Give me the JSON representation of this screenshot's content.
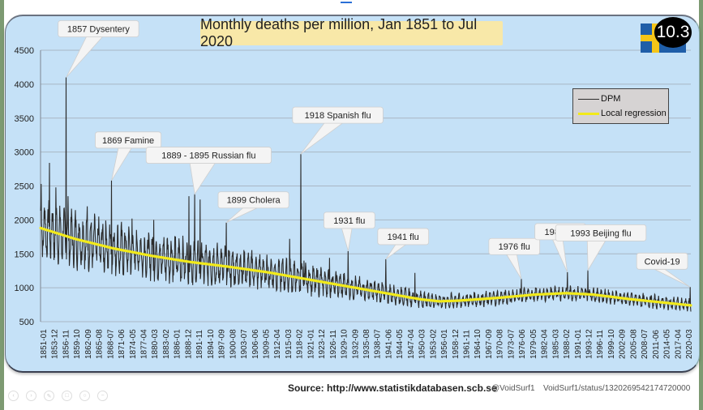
{
  "badge": {
    "label": "10.3",
    "flag": "sweden-flag-icon"
  },
  "footer": {
    "source": "Source: http://www.statistikdatabasen.scb.se",
    "handle": "@VoidSurf1",
    "status": "VoidSurf1/status/1320269542174720000"
  },
  "toolbar": {
    "icons": [
      "prev-icon",
      "next-icon",
      "edit-icon",
      "delete-icon",
      "zoom-icon",
      "minus-icon"
    ]
  },
  "colors": {
    "dpm": "#2b2b2b",
    "regression": "#f2ea1a",
    "panel": "#c5e1f7",
    "title_bg": "#f8e8a8",
    "grid": "#a9b6c4"
  },
  "chart_data": {
    "type": "line",
    "title": "Monthly deaths per million, Jan 1851 to Jul 2020",
    "xlabel": "",
    "ylabel": "",
    "ylim": [
      500,
      4500
    ],
    "yticks": [
      500,
      1000,
      1500,
      2000,
      2500,
      3000,
      3500,
      4000,
      4500
    ],
    "xlim": [
      1851.0,
      2020.5
    ],
    "grid": true,
    "legend_position": "top-right",
    "legend": [
      {
        "name": "DPM",
        "color": "#2b2b2b"
      },
      {
        "name": "Local regression",
        "color": "#f2ea1a"
      }
    ],
    "xticks": [
      "1851-01",
      "1853-12",
      "1856-11",
      "1859-10",
      "1862-09",
      "1865-08",
      "1868-07",
      "1871-06",
      "1874-05",
      "1877-04",
      "1880-03",
      "1883-02",
      "1886-01",
      "1888-12",
      "1891-11",
      "1894-10",
      "1897-09",
      "1900-08",
      "1903-07",
      "1906-06",
      "1909-05",
      "1912-04",
      "1915-03",
      "1918-02",
      "1921-01",
      "1923-12",
      "1926-11",
      "1929-10",
      "1932-09",
      "1935-08",
      "1938-07",
      "1941-06",
      "1944-05",
      "1947-04",
      "1950-03",
      "1953-02",
      "1956-01",
      "1958-12",
      "1961-11",
      "1964-10",
      "1967-09",
      "1970-08",
      "1973-07",
      "1976-06",
      "1979-05",
      "1982-04",
      "1985-03",
      "1988-02",
      "1991-01",
      "1993-12",
      "1996-11",
      "1999-10",
      "2002-09",
      "2005-08",
      "2008-07",
      "2011-06",
      "2014-05",
      "2017-04",
      "2020-03"
    ],
    "series": [
      {
        "name": "Local regression",
        "x": [
          1851,
          1860,
          1870,
          1880,
          1890,
          1900,
          1910,
          1918,
          1925,
          1935,
          1945,
          1950,
          1955,
          1960,
          1970,
          1980,
          1988,
          1995,
          2005,
          2012,
          2020.5
        ],
        "values": [
          1880,
          1720,
          1580,
          1470,
          1380,
          1310,
          1230,
          1150,
          1080,
          980,
          880,
          830,
          800,
          810,
          850,
          900,
          920,
          900,
          830,
          790,
          740
        ]
      },
      {
        "name": "DPM",
        "description": "Monthly series with strong seasonal oscillation around the regression; amplitude ±~400 in 1850s decreasing to ±~100 by 2020",
        "seasonal_amplitude": {
          "x": [
            1851,
            1900,
            1950,
            2020.5
          ],
          "values": [
            420,
            280,
            110,
            90
          ]
        },
        "peaks": [
          {
            "x": 1851.2,
            "value": 2530
          },
          {
            "x": 1853.3,
            "value": 2840
          },
          {
            "x": 1855.0,
            "value": 2480
          },
          {
            "x": 1857.7,
            "value": 4100
          },
          {
            "x": 1858.2,
            "value": 2350
          },
          {
            "x": 1863.2,
            "value": 2200
          },
          {
            "x": 1869.5,
            "value": 2580
          },
          {
            "x": 1874.8,
            "value": 2020
          },
          {
            "x": 1880.5,
            "value": 2000
          },
          {
            "x": 1889.7,
            "value": 2350
          },
          {
            "x": 1891.2,
            "value": 2380
          },
          {
            "x": 1892.6,
            "value": 2300
          },
          {
            "x": 1899.4,
            "value": 1960
          },
          {
            "x": 1915.9,
            "value": 1720
          },
          {
            "x": 1918.8,
            "value": 2970
          },
          {
            "x": 1919.7,
            "value": 1400
          },
          {
            "x": 1926.3,
            "value": 1440
          },
          {
            "x": 1931.2,
            "value": 1540
          },
          {
            "x": 1941.0,
            "value": 1420
          },
          {
            "x": 1948.6,
            "value": 1220
          },
          {
            "x": 1976.3,
            "value": 1130
          },
          {
            "x": 1988.3,
            "value": 1230
          },
          {
            "x": 1993.7,
            "value": 1260
          },
          {
            "x": 2020.3,
            "value": 1010
          }
        ]
      }
    ],
    "annotations": [
      {
        "text": "1857 Dysentery",
        "x": 1857.7,
        "value": 4100
      },
      {
        "text": "1869 Famine",
        "x": 1869.5,
        "value": 2580
      },
      {
        "text": "1889 - 1895 Russian flu",
        "x": 1891.2,
        "value": 2380
      },
      {
        "text": "1899 Cholera",
        "x": 1899.4,
        "value": 1960
      },
      {
        "text": "1918 Spanish flu",
        "x": 1918.8,
        "value": 2970
      },
      {
        "text": "1931 flu",
        "x": 1931.2,
        "value": 1540
      },
      {
        "text": "1941 flu",
        "x": 1941.0,
        "value": 1420
      },
      {
        "text": "1976 flu",
        "x": 1976.3,
        "value": 1130
      },
      {
        "text": "1988 flu",
        "x": 1988.3,
        "value": 1230
      },
      {
        "text": "1993 Beijing flu",
        "x": 1993.7,
        "value": 1260
      },
      {
        "text": "Covid-19",
        "x": 2020.3,
        "value": 1010
      }
    ]
  }
}
